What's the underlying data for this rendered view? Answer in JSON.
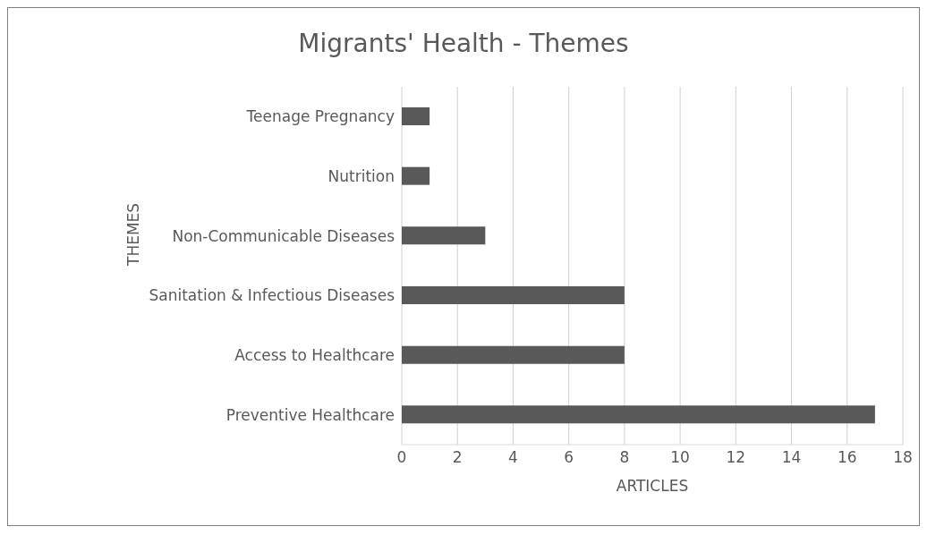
{
  "chart_data": {
    "type": "bar",
    "orientation": "horizontal",
    "title": "Migrants' Health - Themes",
    "xlabel": "ARTICLES",
    "ylabel": "THEMES",
    "categories": [
      "Teenage Pregnancy",
      "Nutrition",
      "Non-Communicable Diseases",
      "Sanitation & Infectious Diseases",
      "Access to Healthcare",
      "Preventive Healthcare"
    ],
    "values": [
      1,
      1,
      3,
      8,
      8,
      17
    ],
    "color": "#595959",
    "xlim": [
      0,
      18
    ],
    "xticks": [
      0,
      2,
      4,
      6,
      8,
      10,
      12,
      14,
      16,
      18
    ],
    "grid": "x",
    "legend": false
  }
}
